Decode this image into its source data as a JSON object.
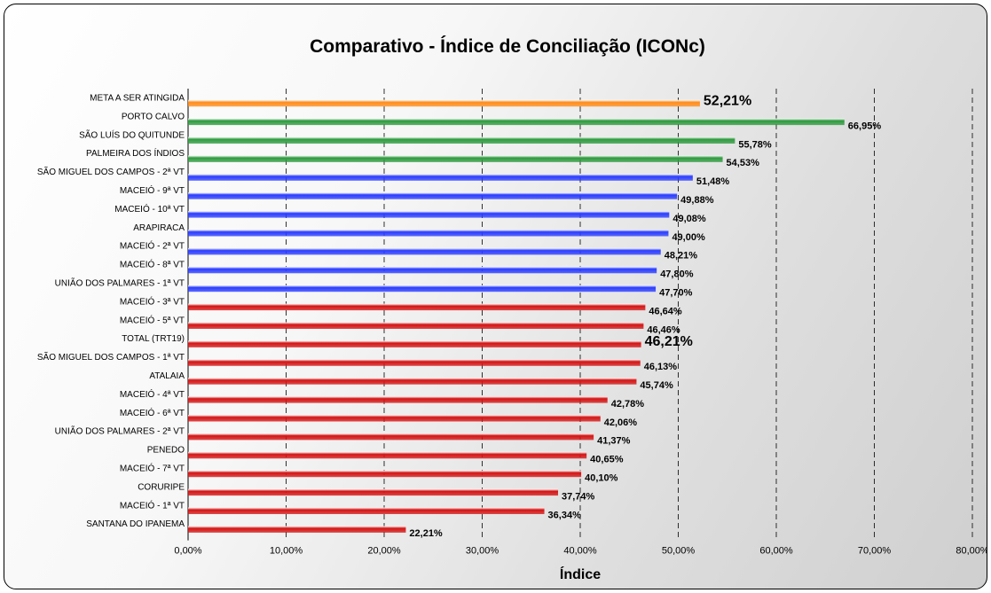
{
  "chart_data": {
    "type": "bar",
    "orientation": "horizontal",
    "title": "Comparativo - Índice de Conciliação (ICONc)",
    "xlabel": "Índice",
    "ylabel": "",
    "xlim": [
      0,
      80
    ],
    "x_ticks": [
      "0,00%",
      "10,00%",
      "20,00%",
      "30,00%",
      "40,00%",
      "50,00%",
      "60,00%",
      "70,00%",
      "80,00%"
    ],
    "grid": "vertical dashed",
    "colors": {
      "meta": "#ff8c1a",
      "green": "#2e9a3e",
      "blue": "#2a3cff",
      "red": "#d41414",
      "total": "#d41414"
    },
    "bars": [
      {
        "category": "META A SER ATINGIDA",
        "value": 52.21,
        "label": "52,21%",
        "group": "meta",
        "emphasis": true
      },
      {
        "category": "PORTO CALVO",
        "value": 66.95,
        "label": "66,95%",
        "group": "green"
      },
      {
        "category": "SÃO LUÍS DO QUITUNDE",
        "value": 55.78,
        "label": "55,78%",
        "group": "green"
      },
      {
        "category": "PALMEIRA DOS ÍNDIOS",
        "value": 54.53,
        "label": "54,53%",
        "group": "green"
      },
      {
        "category": "SÃO MIGUEL DOS CAMPOS - 2ª VT",
        "value": 51.48,
        "label": "51,48%",
        "group": "blue"
      },
      {
        "category": "MACEIÓ - 9ª VT",
        "value": 49.88,
        "label": "49,88%",
        "group": "blue"
      },
      {
        "category": "MACEIÓ - 10ª VT",
        "value": 49.08,
        "label": "49,08%",
        "group": "blue"
      },
      {
        "category": "ARAPIRACA",
        "value": 49.0,
        "label": "49,00%",
        "group": "blue"
      },
      {
        "category": "MACEIÓ - 2ª VT",
        "value": 48.21,
        "label": "48,21%",
        "group": "blue"
      },
      {
        "category": "MACEIÓ - 8ª VT",
        "value": 47.8,
        "label": "47,80%",
        "group": "blue"
      },
      {
        "category": "UNIÃO DOS PALMARES - 1ª VT",
        "value": 47.7,
        "label": "47,70%",
        "group": "blue"
      },
      {
        "category": "MACEIÓ - 3ª VT",
        "value": 46.64,
        "label": "46,64%",
        "group": "red"
      },
      {
        "category": "MACEIÓ - 5ª VT",
        "value": 46.46,
        "label": "46,46%",
        "group": "red"
      },
      {
        "category": "TOTAL (TRT19)",
        "value": 46.21,
        "label": "46,21%",
        "group": "total",
        "emphasis": true
      },
      {
        "category": "SÃO MIGUEL DOS CAMPOS - 1ª VT",
        "value": 46.13,
        "label": "46,13%",
        "group": "red"
      },
      {
        "category": "ATALAIA",
        "value": 45.74,
        "label": "45,74%",
        "group": "red"
      },
      {
        "category": "MACEIÓ - 4ª VT",
        "value": 42.78,
        "label": "42,78%",
        "group": "red"
      },
      {
        "category": "MACEIÓ - 6ª VT",
        "value": 42.06,
        "label": "42,06%",
        "group": "red"
      },
      {
        "category": "UNIÃO DOS PALMARES - 2ª VT",
        "value": 41.37,
        "label": "41,37%",
        "group": "red"
      },
      {
        "category": "PENEDO",
        "value": 40.65,
        "label": "40,65%",
        "group": "red"
      },
      {
        "category": "MACEIÓ - 7ª VT",
        "value": 40.1,
        "label": "40,10%",
        "group": "red"
      },
      {
        "category": "CORURIPE",
        "value": 37.74,
        "label": "37,74%",
        "group": "red"
      },
      {
        "category": "MACEIÓ - 1ª VT",
        "value": 36.34,
        "label": "36,34%",
        "group": "red"
      },
      {
        "category": "SANTANA DO IPANEMA",
        "value": 22.21,
        "label": "22,21%",
        "group": "red"
      }
    ]
  }
}
